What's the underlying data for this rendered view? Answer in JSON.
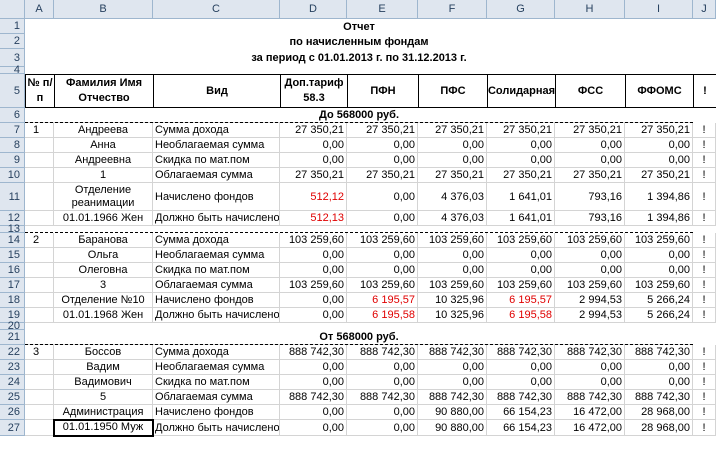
{
  "columns": [
    "A",
    "B",
    "C",
    "D",
    "E",
    "F",
    "G",
    "H",
    "I",
    "J"
  ],
  "rows": [
    "1",
    "2",
    "3",
    "4",
    "5",
    "6",
    "7",
    "8",
    "9",
    "10",
    "11",
    "12",
    "13",
    "14",
    "15",
    "16",
    "17",
    "18",
    "19",
    "20",
    "21",
    "22",
    "23",
    "24",
    "25",
    "26",
    "27"
  ],
  "title": {
    "line1": "Отчет",
    "line2": "по начисленным фондам",
    "line3": "за период с 01.01.2013 г. по 31.12.2013 г."
  },
  "header": {
    "num": "№ п/п",
    "name": "Фамилия Имя Отчество",
    "kind": "Вид",
    "dop": "Доп.тариф 58.3",
    "pfn": "ПФН",
    "pfs": "ПФС",
    "sol": "Солидарная",
    "fss": "ФСС",
    "ffoms": "ФФОМС",
    "excl": "!"
  },
  "sections": {
    "s1": "До 568000 руб.",
    "s2": "От 568000 руб."
  },
  "records": [
    {
      "num": "1",
      "lines": [
        {
          "row": "7",
          "b": "Андреева",
          "c": "Сумма дохода",
          "d": "27 350,21",
          "e": "27 350,21",
          "f": "27 350,21",
          "g": "27 350,21",
          "h": "27 350,21",
          "i": "27 350,21",
          "j": "!"
        },
        {
          "row": "8",
          "b": "Анна",
          "c": "Необлагаемая сумма",
          "d": "0,00",
          "e": "0,00",
          "f": "0,00",
          "g": "0,00",
          "h": "0,00",
          "i": "0,00",
          "j": "!"
        },
        {
          "row": "9",
          "b": "Андреевна",
          "c": "Скидка по мат.пом",
          "d": "0,00",
          "e": "0,00",
          "f": "0,00",
          "g": "0,00",
          "h": "0,00",
          "i": "0,00",
          "j": "!"
        },
        {
          "row": "10",
          "b": "1",
          "c": "Облагаемая сумма",
          "d": "27 350,21",
          "e": "27 350,21",
          "f": "27 350,21",
          "g": "27 350,21",
          "h": "27 350,21",
          "i": "27 350,21",
          "j": "!"
        },
        {
          "row": "11",
          "b": "Отделение реанимации",
          "c": "Начислено фондов",
          "d": "512,12",
          "e": "0,00",
          "f": "4 376,03",
          "g": "1 641,01",
          "h": "793,16",
          "i": "1 394,86",
          "j": "!",
          "red": [
            "d"
          ]
        },
        {
          "row": "12",
          "b": "01.01.1966 Жен",
          "c": "Должно быть начислено",
          "d": "512,13",
          "e": "0,00",
          "f": "4 376,03",
          "g": "1 641,01",
          "h": "793,16",
          "i": "1 394,86",
          "j": "!",
          "red": [
            "d"
          ]
        }
      ]
    },
    {
      "num": "2",
      "lines": [
        {
          "row": "14",
          "b": "Баранова",
          "c": "Сумма дохода",
          "d": "103 259,60",
          "e": "103 259,60",
          "f": "103 259,60",
          "g": "103 259,60",
          "h": "103 259,60",
          "i": "103 259,60",
          "j": "!"
        },
        {
          "row": "15",
          "b": "Ольга",
          "c": "Необлагаемая сумма",
          "d": "0,00",
          "e": "0,00",
          "f": "0,00",
          "g": "0,00",
          "h": "0,00",
          "i": "0,00",
          "j": "!"
        },
        {
          "row": "16",
          "b": "Олеговна",
          "c": "Скидка по мат.пом",
          "d": "0,00",
          "e": "0,00",
          "f": "0,00",
          "g": "0,00",
          "h": "0,00",
          "i": "0,00",
          "j": "!"
        },
        {
          "row": "17",
          "b": "3",
          "c": "Облагаемая сумма",
          "d": "103 259,60",
          "e": "103 259,60",
          "f": "103 259,60",
          "g": "103 259,60",
          "h": "103 259,60",
          "i": "103 259,60",
          "j": "!"
        },
        {
          "row": "18",
          "b": "Отделение №10",
          "c": "Начислено фондов",
          "d": "0,00",
          "e": "6 195,57",
          "f": "10 325,96",
          "g": "6 195,57",
          "h": "2 994,53",
          "i": "5 266,24",
          "j": "!",
          "red": [
            "e",
            "g"
          ]
        },
        {
          "row": "19",
          "b": "01.01.1968 Жен",
          "c": "Должно быть начислено",
          "d": "0,00",
          "e": "6 195,58",
          "f": "10 325,96",
          "g": "6 195,58",
          "h": "2 994,53",
          "i": "5 266,24",
          "j": "!",
          "red": [
            "e",
            "g"
          ]
        }
      ]
    },
    {
      "num": "3",
      "lines": [
        {
          "row": "22",
          "b": "Боссов",
          "c": "Сумма дохода",
          "d": "888 742,30",
          "e": "888 742,30",
          "f": "888 742,30",
          "g": "888 742,30",
          "h": "888 742,30",
          "i": "888 742,30",
          "j": "!"
        },
        {
          "row": "23",
          "b": "Вадим",
          "c": "Необлагаемая сумма",
          "d": "0,00",
          "e": "0,00",
          "f": "0,00",
          "g": "0,00",
          "h": "0,00",
          "i": "0,00",
          "j": "!"
        },
        {
          "row": "24",
          "b": "Вадимович",
          "c": "Скидка по мат.пом",
          "d": "0,00",
          "e": "0,00",
          "f": "0,00",
          "g": "0,00",
          "h": "0,00",
          "i": "0,00",
          "j": "!"
        },
        {
          "row": "25",
          "b": "5",
          "c": "Облагаемая сумма",
          "d": "888 742,30",
          "e": "888 742,30",
          "f": "888 742,30",
          "g": "888 742,30",
          "h": "888 742,30",
          "i": "888 742,30",
          "j": "!"
        },
        {
          "row": "26",
          "b": "Администрация",
          "c": "Начислено фондов",
          "d": "0,00",
          "e": "0,00",
          "f": "90 880,00",
          "g": "66 154,23",
          "h": "16 472,00",
          "i": "28 968,00",
          "j": "!"
        },
        {
          "row": "27",
          "b": "01.01.1950 Муж",
          "c": "Должно быть начислено",
          "d": "0,00",
          "e": "0,00",
          "f": "90 880,00",
          "g": "66 154,23",
          "h": "16 472,00",
          "i": "28 968,00",
          "j": "!"
        }
      ]
    }
  ]
}
